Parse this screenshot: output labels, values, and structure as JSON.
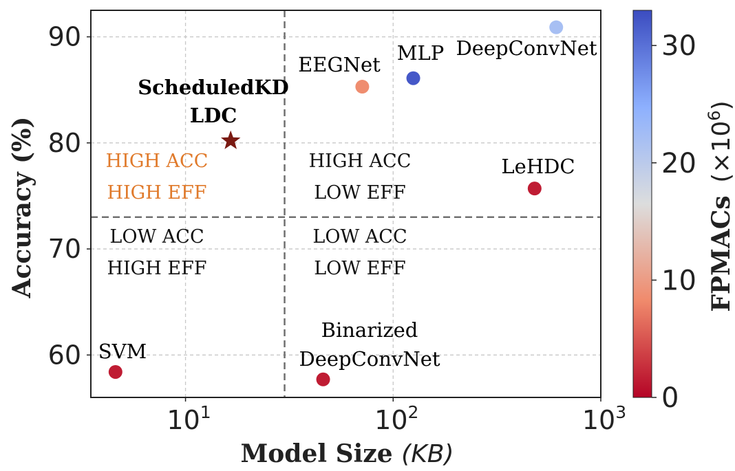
{
  "chart_data": {
    "type": "scatter",
    "xlabel": "Model Size",
    "xlabel_unit": "(KB)",
    "ylabel": "Accuracy (%)",
    "xscale": "log",
    "xlim": [
      3.5,
      1000
    ],
    "ylim": [
      56,
      92.5
    ],
    "x_ticks": [
      {
        "value": 10,
        "mantissa": "10",
        "exp": "1"
      },
      {
        "value": 100,
        "mantissa": "10",
        "exp": "2"
      },
      {
        "value": 1000,
        "mantissa": "10",
        "exp": "3"
      }
    ],
    "y_ticks": [
      60,
      70,
      80,
      90
    ],
    "grid": true,
    "threshold_lines": {
      "x": 30,
      "y": 73
    },
    "points": [
      {
        "name": "SVM",
        "label_lines": [
          "SVM"
        ],
        "x": 4.6,
        "y": 58.4,
        "fpmacs": 1.5,
        "marker": "circle"
      },
      {
        "name": "Binarized DeepConvNet",
        "label_lines": [
          "Binarized",
          "DeepConvNet"
        ],
        "x": 46,
        "y": 57.7,
        "fpmacs": 1.5,
        "marker": "circle"
      },
      {
        "name": "EEGNet",
        "label_lines": [
          "EEGNet"
        ],
        "x": 71,
        "y": 85.3,
        "fpmacs": 8.5,
        "marker": "circle"
      },
      {
        "name": "MLP",
        "label_lines": [
          "MLP"
        ],
        "x": 125,
        "y": 86.1,
        "fpmacs": 32,
        "marker": "circle"
      },
      {
        "name": "DeepConvNet",
        "label_lines": [
          "DeepConvNet"
        ],
        "x": 610,
        "y": 90.9,
        "fpmacs": 22,
        "marker": "circle"
      },
      {
        "name": "LeHDC",
        "label_lines": [
          "LeHDC"
        ],
        "x": 480,
        "y": 75.7,
        "fpmacs": 1.5,
        "marker": "circle"
      },
      {
        "name": "ScheduledKD LDC",
        "label_lines": [
          "ScheduledKD",
          "LDC"
        ],
        "x": 16.5,
        "y": 80.2,
        "fpmacs": 0,
        "marker": "star",
        "color": "#7a1a12"
      }
    ],
    "quadrant_labels": [
      {
        "lines": [
          "HIGH ACC",
          "HIGH EFF"
        ],
        "color": "#e07a2b"
      },
      {
        "lines": [
          "HIGH ACC",
          "LOW EFF"
        ],
        "color": "#111111"
      },
      {
        "lines": [
          "LOW ACC",
          "HIGH EFF"
        ],
        "color": "#111111"
      },
      {
        "lines": [
          "LOW ACC",
          "LOW EFF"
        ],
        "color": "#111111"
      }
    ],
    "colorbar": {
      "label": "FPMACs",
      "label_unit": "(×10",
      "label_exp": "6",
      "label_close": ")",
      "min": 0,
      "max": 33,
      "ticks": [
        0,
        10,
        20,
        30
      ],
      "colormap": "coolwarm"
    }
  }
}
